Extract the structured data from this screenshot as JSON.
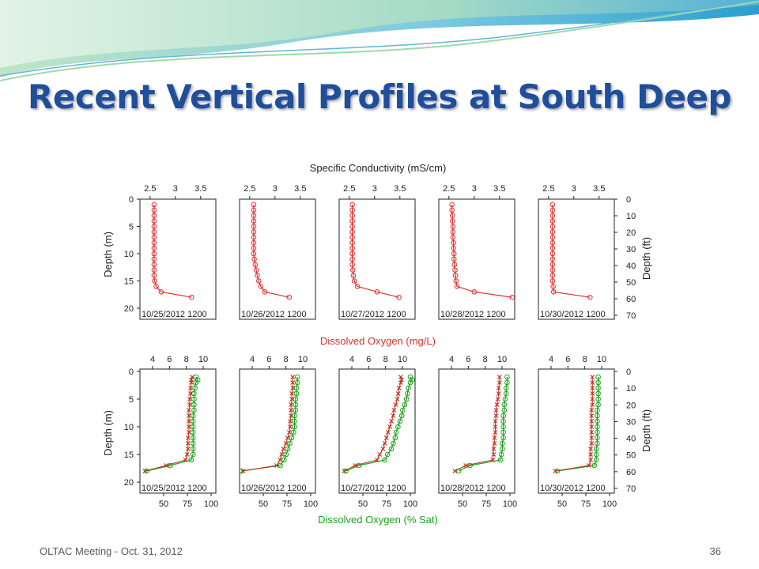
{
  "slide": {
    "title": "Recent Vertical Profiles at South Deep",
    "footer_left": "OLTAC Meeting - Oct. 31, 2012",
    "page_number": "36"
  },
  "colors": {
    "title": "#1f4e9b",
    "conductivity": "#e03030",
    "oxygen_sat": "#1aa51a",
    "oxygen_mgl": "#c03020",
    "wave_dark": "#1aa0c8",
    "wave_light": "#9ed8a0"
  },
  "chart_data": [
    {
      "type": "line",
      "title": "Specific Conductivity (mS/cm)",
      "ylabel": "Depth (m)",
      "ylabel_right": "Depth (ft)",
      "xlim": [
        2.3,
        3.8
      ],
      "xticks": [
        2.5,
        3,
        3.5
      ],
      "xtick_labels": [
        "2.5",
        "3",
        "3.5"
      ],
      "ylim": [
        0,
        20
      ],
      "yticks": [
        0,
        5,
        10,
        15,
        20
      ],
      "ytick_labels": [
        "0",
        "5",
        "10",
        "15",
        "20"
      ],
      "ft_ticks": [
        0,
        10,
        20,
        30,
        40,
        50,
        60,
        70
      ],
      "ft_tick_labels": [
        "0",
        "10",
        "20",
        "30",
        "40",
        "50",
        "60",
        "70"
      ],
      "panels": [
        {
          "label": "10/25/2012 1200",
          "depth": [
            1,
            2,
            3,
            4,
            5,
            6,
            7,
            8,
            9,
            10,
            11,
            12,
            13,
            14,
            15,
            16,
            17,
            18
          ],
          "value": [
            2.58,
            2.58,
            2.58,
            2.58,
            2.58,
            2.58,
            2.58,
            2.58,
            2.58,
            2.58,
            2.58,
            2.58,
            2.58,
            2.58,
            2.59,
            2.62,
            2.72,
            3.32
          ]
        },
        {
          "label": "10/26/2012 1200",
          "depth": [
            1,
            2,
            3,
            4,
            5,
            6,
            7,
            8,
            9,
            10,
            11,
            12,
            13,
            14,
            15,
            16,
            17,
            18
          ],
          "value": [
            2.58,
            2.58,
            2.58,
            2.58,
            2.58,
            2.58,
            2.58,
            2.58,
            2.58,
            2.58,
            2.59,
            2.61,
            2.63,
            2.65,
            2.68,
            2.72,
            2.8,
            3.28
          ]
        },
        {
          "label": "10/27/2012 1200",
          "depth": [
            1,
            2,
            3,
            4,
            5,
            6,
            7,
            8,
            9,
            10,
            11,
            12,
            13,
            14,
            15,
            16,
            17,
            18
          ],
          "value": [
            2.56,
            2.56,
            2.56,
            2.56,
            2.56,
            2.56,
            2.56,
            2.56,
            2.56,
            2.56,
            2.56,
            2.56,
            2.57,
            2.58,
            2.6,
            2.66,
            3.05,
            3.48
          ]
        },
        {
          "label": "10/28/2012 1200",
          "depth": [
            1,
            2,
            3,
            4,
            5,
            6,
            7,
            8,
            9,
            10,
            11,
            12,
            13,
            14,
            15,
            16,
            17,
            18
          ],
          "value": [
            2.56,
            2.56,
            2.57,
            2.57,
            2.58,
            2.58,
            2.58,
            2.59,
            2.59,
            2.6,
            2.6,
            2.61,
            2.62,
            2.63,
            2.64,
            2.66,
            3.0,
            3.75
          ]
        },
        {
          "label": "10/30/2012 1200",
          "depth": [
            1,
            2,
            3,
            4,
            5,
            6,
            7,
            8,
            9,
            10,
            11,
            12,
            13,
            14,
            15,
            16,
            17,
            18
          ],
          "value": [
            2.58,
            2.58,
            2.58,
            2.58,
            2.58,
            2.58,
            2.58,
            2.58,
            2.58,
            2.58,
            2.58,
            2.58,
            2.58,
            2.58,
            2.58,
            2.59,
            2.6,
            3.32
          ]
        }
      ]
    },
    {
      "type": "line",
      "title_top": "Dissolved Oxygen (mg/L)",
      "title_bottom": "Dissolved Oxygen (% Sat)",
      "ylabel": "Depth (m)",
      "ylabel_right": "Depth (ft)",
      "xlim_pct": [
        25,
        105
      ],
      "xticks_pct": [
        50,
        75,
        100
      ],
      "xtick_labels_pct": [
        "50",
        "75",
        "100"
      ],
      "xlim_mgl": [
        2.5,
        11.5
      ],
      "xticks_mgl": [
        4,
        6,
        8,
        10
      ],
      "xtick_labels_mgl": [
        "4",
        "6",
        "8",
        "10"
      ],
      "ylim": [
        0,
        20
      ],
      "yticks": [
        0,
        5,
        10,
        15,
        20
      ],
      "ytick_labels": [
        "0",
        "5",
        "10",
        "15",
        "20"
      ],
      "ft_ticks": [
        0,
        10,
        20,
        30,
        40,
        50,
        60,
        70
      ],
      "ft_tick_labels": [
        "0",
        "10",
        "20",
        "30",
        "40",
        "50",
        "60",
        "70"
      ],
      "panels": [
        {
          "label": "10/25/2012 1200",
          "depth": [
            1,
            1.5,
            2,
            3,
            4,
            5,
            6,
            7,
            8,
            9,
            10,
            11,
            12,
            13,
            14,
            15,
            16,
            17,
            18
          ],
          "sat": [
            84,
            86,
            84,
            83,
            82,
            82,
            82,
            82,
            81,
            81,
            81,
            81,
            81,
            81,
            81,
            81,
            79,
            57,
            32
          ],
          "mgl": [
            8.7,
            8.6,
            8.6,
            8.5,
            8.5,
            8.4,
            8.4,
            8.3,
            8.3,
            8.3,
            8.3,
            8.3,
            8.2,
            8.2,
            8.2,
            8.1,
            7.9,
            5.6,
            3.1
          ]
        },
        {
          "label": "10/26/2012 1200",
          "depth": [
            1,
            2,
            3,
            4,
            5,
            6,
            7,
            8,
            9,
            10,
            11,
            12,
            13,
            14,
            15,
            16,
            17,
            18
          ],
          "sat": [
            86,
            86,
            85,
            85,
            84,
            84,
            84,
            83,
            83,
            83,
            82,
            80,
            78,
            76,
            74,
            72,
            68,
            27
          ],
          "mgl": [
            8.8,
            8.8,
            8.8,
            8.7,
            8.7,
            8.6,
            8.6,
            8.6,
            8.5,
            8.5,
            8.4,
            8.2,
            8.0,
            7.7,
            7.5,
            7.3,
            6.9,
            2.9
          ]
        },
        {
          "label": "10/27/2012 1200",
          "depth": [
            1,
            1.5,
            2,
            3,
            4,
            5,
            6,
            7,
            8,
            9,
            10,
            11,
            12,
            13,
            14,
            15,
            16,
            17,
            18
          ],
          "sat": [
            100,
            102,
            100,
            98,
            97,
            96,
            94,
            92,
            91,
            89,
            87,
            85,
            84,
            82,
            80,
            76,
            73,
            46,
            32
          ],
          "mgl": [
            9.8,
            9.9,
            9.8,
            9.6,
            9.5,
            9.4,
            9.2,
            9.0,
            8.9,
            8.7,
            8.5,
            8.3,
            8.1,
            7.9,
            7.7,
            7.3,
            7.0,
            4.4,
            3.1
          ]
        },
        {
          "label": "10/28/2012 1200",
          "depth": [
            1,
            2,
            3,
            4,
            5,
            6,
            7,
            8,
            9,
            10,
            11,
            12,
            13,
            14,
            15,
            16,
            17,
            18
          ],
          "sat": [
            97,
            97,
            96,
            96,
            95,
            94,
            94,
            93,
            93,
            93,
            93,
            93,
            92,
            92,
            91,
            90,
            58,
            46
          ],
          "mgl": [
            9.7,
            9.7,
            9.6,
            9.6,
            9.5,
            9.4,
            9.3,
            9.3,
            9.2,
            9.2,
            9.2,
            9.1,
            9.1,
            9.0,
            9.0,
            8.9,
            5.7,
            4.4
          ]
        },
        {
          "label": "10/30/2012 1200",
          "depth": [
            1,
            2,
            3,
            4,
            5,
            6,
            7,
            8,
            9,
            10,
            11,
            12,
            13,
            14,
            15,
            16,
            17,
            18
          ],
          "sat": [
            88,
            88,
            88,
            88,
            88,
            88,
            87,
            87,
            87,
            87,
            87,
            87,
            87,
            86,
            86,
            86,
            84,
            45
          ],
          "mgl": [
            8.9,
            8.9,
            8.9,
            8.9,
            8.9,
            8.9,
            8.8,
            8.8,
            8.8,
            8.8,
            8.8,
            8.8,
            8.8,
            8.7,
            8.7,
            8.7,
            8.5,
            4.5
          ]
        }
      ]
    }
  ]
}
